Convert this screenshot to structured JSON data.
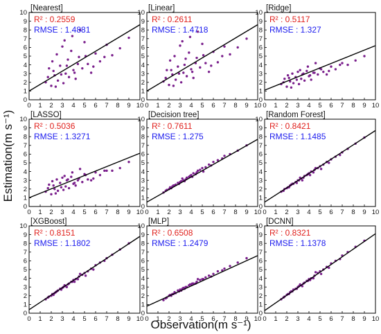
{
  "figure": {
    "xlabel": "Observation(m s⁻¹)",
    "ylabel": "Estimation(m s⁻¹)",
    "point_color": "#7a1f8c",
    "line_color": "#000000",
    "r2_color": "#e0201c",
    "rmse_color": "#1a1aee"
  },
  "chart_data": [
    {
      "type": "scatter",
      "title": "[Nearest]",
      "r2_text": "R² : 0.2559",
      "rmse_text": "RMSE : 1.4881",
      "xlim": [
        0,
        10
      ],
      "ylim": [
        0,
        10
      ],
      "xticks": [
        0,
        1,
        2,
        3,
        4,
        5,
        6,
        7,
        8,
        9,
        10
      ],
      "yticks": [
        0,
        1,
        2,
        3,
        4,
        5,
        6,
        7,
        8,
        9,
        10
      ],
      "fit_line": {
        "x": [
          0,
          10
        ],
        "y": [
          1.0,
          8.6
        ]
      },
      "x": [
        1.5,
        1.8,
        2.0,
        2.1,
        2.3,
        2.5,
        2.6,
        2.8,
        3.0,
        3.1,
        3.3,
        3.5,
        3.6,
        3.8,
        4.0,
        4.2,
        4.5,
        4.8,
        5.0,
        5.3,
        5.6,
        6.0,
        6.4,
        7.0,
        7.5,
        8.2,
        9.0,
        1.7,
        2.2,
        2.9,
        3.4,
        3.9,
        4.4,
        5.1,
        5.8,
        6.8,
        2.4,
        3.2,
        4.1,
        4.6
      ],
      "y": [
        2.0,
        3.6,
        1.6,
        4.4,
        2.8,
        5.2,
        2.2,
        3.9,
        6.1,
        1.9,
        3.0,
        4.6,
        2.6,
        5.6,
        3.4,
        2.4,
        4.9,
        3.6,
        6.6,
        4.1,
        3.1,
        5.3,
        4.4,
        6.3,
        5.1,
        5.9,
        7.1,
        2.6,
        3.3,
        2.9,
        3.9,
        7.3,
        4.1,
        5.0,
        3.8,
        4.9,
        1.5,
        6.8,
        3.1,
        8.0
      ]
    },
    {
      "type": "scatter",
      "title": "[Linear]",
      "r2_text": "R² : 0.2611",
      "rmse_text": "RMSE : 1.4718",
      "xlim": [
        0,
        10
      ],
      "ylim": [
        0,
        10
      ],
      "xticks": [
        0,
        1,
        2,
        3,
        4,
        5,
        6,
        7,
        8,
        9,
        10
      ],
      "yticks": [
        0,
        1,
        2,
        3,
        4,
        5,
        6,
        7,
        8,
        9,
        10
      ],
      "fit_line": {
        "x": [
          0,
          10
        ],
        "y": [
          1.0,
          8.6
        ]
      },
      "x": [
        1.5,
        1.8,
        2.0,
        2.1,
        2.3,
        2.5,
        2.6,
        2.8,
        3.0,
        3.1,
        3.3,
        3.5,
        3.6,
        3.8,
        4.0,
        4.2,
        4.5,
        4.8,
        5.0,
        5.3,
        5.6,
        6.0,
        6.4,
        7.0,
        7.5,
        8.2,
        9.0,
        1.7,
        2.2,
        2.9,
        3.4,
        3.9,
        4.4,
        5.1,
        5.8,
        6.8,
        2.4,
        3.2,
        4.1,
        4.6
      ],
      "y": [
        2.1,
        3.4,
        1.7,
        4.5,
        2.9,
        5.0,
        2.3,
        3.8,
        6.2,
        2.0,
        3.1,
        4.7,
        2.7,
        5.4,
        3.5,
        2.5,
        4.8,
        3.7,
        6.4,
        4.2,
        3.2,
        5.5,
        4.3,
        6.1,
        5.2,
        6.0,
        7.0,
        2.5,
        3.4,
        3.0,
        4.0,
        7.2,
        4.2,
        5.1,
        3.9,
        5.0,
        1.6,
        6.7,
        3.2,
        7.8
      ]
    },
    {
      "type": "scatter",
      "title": "[Ridge]",
      "r2_text": "R² : 0.5117",
      "rmse_text": "RMSE : 1.327",
      "xlim": [
        0,
        10
      ],
      "ylim": [
        0,
        10
      ],
      "xticks": [
        0,
        1,
        2,
        3,
        4,
        5,
        6,
        7,
        8,
        9,
        10
      ],
      "yticks": [
        0,
        1,
        2,
        3,
        4,
        5,
        6,
        7,
        8,
        9,
        10
      ],
      "fit_line": {
        "x": [
          0,
          10
        ],
        "y": [
          1.1,
          6.2
        ]
      },
      "x": [
        1.5,
        1.8,
        2.0,
        2.1,
        2.3,
        2.5,
        2.6,
        2.8,
        3.0,
        3.1,
        3.3,
        3.5,
        3.6,
        3.8,
        4.0,
        4.2,
        4.5,
        4.8,
        5.0,
        5.3,
        5.6,
        6.0,
        6.4,
        7.0,
        7.5,
        8.2,
        9.0,
        1.7,
        2.2,
        2.9,
        3.4,
        3.9,
        4.4,
        5.1,
        5.8,
        6.8,
        2.4,
        3.2,
        4.1,
        4.6
      ],
      "y": [
        1.8,
        2.4,
        1.5,
        2.8,
        2.1,
        3.0,
        1.9,
        2.6,
        3.2,
        1.8,
        2.4,
        3.0,
        2.2,
        3.3,
        2.7,
        2.3,
        3.1,
        2.9,
        3.6,
        3.2,
        2.9,
        3.8,
        3.5,
        4.2,
        4.0,
        4.5,
        5.0,
        2.0,
        2.5,
        2.3,
        2.9,
        3.8,
        3.1,
        3.5,
        3.3,
        4.0,
        1.4,
        3.4,
        2.8,
        4.2
      ]
    },
    {
      "type": "scatter",
      "title": "[LASSO]",
      "r2_text": "R² : 0.5036",
      "rmse_text": "RMSE : 1.3271",
      "xlim": [
        0,
        10
      ],
      "ylim": [
        0,
        10
      ],
      "xticks": [
        0,
        1,
        2,
        3,
        4,
        5,
        6,
        7,
        8,
        9,
        10
      ],
      "yticks": [
        0,
        1,
        2,
        3,
        4,
        5,
        6,
        7,
        8,
        9,
        10
      ],
      "fit_line": {
        "x": [
          0,
          10
        ],
        "y": [
          1.0,
          6.1
        ]
      },
      "x": [
        1.5,
        1.8,
        2.0,
        2.1,
        2.3,
        2.5,
        2.6,
        2.8,
        3.0,
        3.1,
        3.3,
        3.5,
        3.6,
        3.8,
        4.0,
        4.2,
        4.5,
        4.8,
        5.0,
        5.3,
        5.6,
        6.0,
        6.4,
        7.0,
        7.5,
        8.2,
        9.0,
        1.7,
        2.2,
        2.9,
        3.4,
        3.9,
        4.4,
        5.1,
        5.8,
        6.8,
        2.4,
        3.2,
        4.1,
        4.6
      ],
      "y": [
        1.7,
        2.5,
        1.4,
        2.9,
        2.0,
        3.1,
        1.8,
        2.7,
        3.3,
        1.9,
        2.3,
        3.1,
        2.1,
        3.4,
        2.6,
        2.4,
        3.2,
        2.8,
        3.7,
        3.1,
        3.0,
        3.9,
        3.6,
        4.1,
        4.1,
        4.4,
        5.1,
        2.1,
        2.4,
        2.2,
        3.0,
        3.9,
        3.0,
        3.6,
        3.2,
        4.1,
        1.5,
        3.5,
        2.7,
        4.3
      ]
    },
    {
      "type": "scatter",
      "title": "[Decision tree]",
      "r2_text": "R² : 0.7611",
      "rmse_text": "RMSE : 1.275",
      "xlim": [
        0,
        10
      ],
      "ylim": [
        0,
        10
      ],
      "xticks": [
        0,
        1,
        2,
        3,
        4,
        5,
        6,
        7,
        8,
        9,
        10
      ],
      "yticks": [
        0,
        1,
        2,
        3,
        4,
        5,
        6,
        7,
        8,
        9,
        10
      ],
      "fit_line": {
        "x": [
          0,
          10
        ],
        "y": [
          0.5,
          7.7
        ]
      },
      "x": [
        1.5,
        1.8,
        2.0,
        2.1,
        2.3,
        2.5,
        2.6,
        2.8,
        3.0,
        3.1,
        3.3,
        3.5,
        3.6,
        3.8,
        4.0,
        4.2,
        4.5,
        4.8,
        5.0,
        5.3,
        5.6,
        6.0,
        6.4,
        7.0,
        7.5,
        8.2,
        9.0,
        1.7,
        2.2,
        2.9,
        3.4,
        3.9,
        4.4,
        5.1,
        5.8,
        6.8,
        2.4,
        3.2,
        4.1,
        4.6
      ],
      "y": [
        1.6,
        1.9,
        2.0,
        2.2,
        2.3,
        2.4,
        2.5,
        2.7,
        2.8,
        2.9,
        3.0,
        3.1,
        3.3,
        3.4,
        3.6,
        3.8,
        3.9,
        4.2,
        4.4,
        4.5,
        4.8,
        5.1,
        5.3,
        5.8,
        6.0,
        6.4,
        7.0,
        1.8,
        2.1,
        2.6,
        2.9,
        3.5,
        3.7,
        4.0,
        4.7,
        5.5,
        2.4,
        3.2,
        3.4,
        4.1
      ]
    },
    {
      "type": "scatter",
      "title": "[Random Forest]",
      "r2_text": "R² : 0.8421",
      "rmse_text": "RMSE : 1.1485",
      "xlim": [
        0,
        10
      ],
      "ylim": [
        0,
        10
      ],
      "xticks": [
        0,
        1,
        2,
        3,
        4,
        5,
        6,
        7,
        8,
        9,
        10
      ],
      "yticks": [
        0,
        1,
        2,
        3,
        4,
        5,
        6,
        7,
        8,
        9,
        10
      ],
      "fit_line": {
        "x": [
          0,
          10
        ],
        "y": [
          0.5,
          8.7
        ]
      },
      "x": [
        1.5,
        1.8,
        2.0,
        2.1,
        2.3,
        2.5,
        2.6,
        2.8,
        3.0,
        3.1,
        3.3,
        3.5,
        3.6,
        3.8,
        4.0,
        4.2,
        4.5,
        4.8,
        5.0,
        5.3,
        5.6,
        6.0,
        6.4,
        7.0,
        7.5,
        8.2,
        9.0,
        1.7,
        2.2,
        2.9,
        3.4,
        3.9,
        4.4,
        5.1,
        5.8,
        6.8,
        2.4,
        3.2,
        4.1,
        4.6
      ],
      "y": [
        1.7,
        2.0,
        2.1,
        2.2,
        2.4,
        2.6,
        2.6,
        2.8,
        3.0,
        3.0,
        3.2,
        3.3,
        3.5,
        3.6,
        3.8,
        4.0,
        4.2,
        4.4,
        4.6,
        4.8,
        5.1,
        5.4,
        5.7,
        6.2,
        6.6,
        7.2,
        7.9,
        1.8,
        2.2,
        2.7,
        3.0,
        3.7,
        3.9,
        4.3,
        5.0,
        5.9,
        2.5,
        3.3,
        3.6,
        4.4
      ]
    },
    {
      "type": "scatter",
      "title": "[XGBoost]",
      "r2_text": "R² : 0.8151",
      "rmse_text": "RMSE : 1.1802",
      "xlim": [
        0,
        10
      ],
      "ylim": [
        0,
        10
      ],
      "xticks": [
        0,
        1,
        2,
        3,
        4,
        5,
        6,
        7,
        8,
        9,
        10
      ],
      "yticks": [
        0,
        1,
        2,
        3,
        4,
        5,
        6,
        7,
        8,
        9,
        10
      ],
      "fit_line": {
        "x": [
          0,
          10
        ],
        "y": [
          0.4,
          8.8
        ]
      },
      "x": [
        1.5,
        1.8,
        2.0,
        2.1,
        2.3,
        2.5,
        2.6,
        2.8,
        3.0,
        3.1,
        3.3,
        3.5,
        3.6,
        3.8,
        4.0,
        4.2,
        4.5,
        4.8,
        5.0,
        5.3,
        5.6,
        6.0,
        6.4,
        7.0,
        7.5,
        8.2,
        9.0,
        1.7,
        2.2,
        2.9,
        3.4,
        3.9,
        4.4,
        5.1,
        5.8,
        6.8,
        2.4,
        3.2,
        4.1,
        4.6
      ],
      "y": [
        1.6,
        1.9,
        2.0,
        2.2,
        2.3,
        2.5,
        2.6,
        2.8,
        2.9,
        3.0,
        3.1,
        3.3,
        3.4,
        3.6,
        3.8,
        3.9,
        4.2,
        4.4,
        4.6,
        4.8,
        5.1,
        5.5,
        5.8,
        6.3,
        6.7,
        7.3,
        8.0,
        1.8,
        2.1,
        2.7,
        3.0,
        3.6,
        3.9,
        4.3,
        5.0,
        6.0,
        2.4,
        3.2,
        3.6,
        4.5
      ]
    },
    {
      "type": "scatter",
      "title": "[MLP]",
      "r2_text": "R² : 0.6508",
      "rmse_text": "RMSE : 1.2479",
      "xlim": [
        0,
        10
      ],
      "ylim": [
        0,
        10
      ],
      "xticks": [
        0,
        1,
        2,
        3,
        4,
        5,
        6,
        7,
        8,
        9,
        10
      ],
      "yticks": [
        0,
        1,
        2,
        3,
        4,
        5,
        6,
        7,
        8,
        9,
        10
      ],
      "fit_line": {
        "x": [
          0,
          10
        ],
        "y": [
          0.8,
          6.6
        ]
      },
      "x": [
        1.5,
        1.8,
        2.0,
        2.1,
        2.3,
        2.5,
        2.6,
        2.8,
        3.0,
        3.1,
        3.3,
        3.5,
        3.6,
        3.8,
        4.0,
        4.2,
        4.5,
        4.8,
        5.0,
        5.3,
        5.6,
        6.0,
        6.4,
        7.0,
        7.5,
        8.2,
        9.0,
        1.7,
        2.2,
        2.9,
        3.4,
        3.9,
        4.4,
        5.1,
        5.8,
        6.8,
        2.4,
        3.2,
        4.1,
        4.6
      ],
      "y": [
        1.5,
        1.8,
        2.0,
        2.1,
        2.2,
        2.4,
        2.3,
        2.6,
        2.7,
        2.6,
        2.9,
        3.0,
        3.0,
        3.2,
        3.3,
        3.4,
        3.6,
        3.8,
        3.9,
        4.1,
        4.3,
        4.5,
        4.8,
        5.1,
        5.4,
        5.8,
        6.3,
        1.7,
        2.0,
        2.5,
        2.8,
        3.3,
        3.4,
        3.9,
        4.2,
        4.9,
        2.2,
        2.8,
        3.4,
        3.9
      ]
    },
    {
      "type": "scatter",
      "title": "[DCNN]",
      "r2_text": "R² : 0.8321",
      "rmse_text": "RMSE : 1.1378",
      "xlim": [
        0,
        10
      ],
      "ylim": [
        0,
        10
      ],
      "xticks": [
        0,
        1,
        2,
        3,
        4,
        5,
        6,
        7,
        8,
        9,
        10
      ],
      "yticks": [
        0,
        1,
        2,
        3,
        4,
        5,
        6,
        7,
        8,
        9,
        10
      ],
      "fit_line": {
        "x": [
          0,
          10
        ],
        "y": [
          0.3,
          9.1
        ]
      },
      "x": [
        1.5,
        1.8,
        2.0,
        2.1,
        2.3,
        2.5,
        2.6,
        2.8,
        3.0,
        3.1,
        3.3,
        3.5,
        3.6,
        3.8,
        4.0,
        4.2,
        4.5,
        4.8,
        5.0,
        5.3,
        5.6,
        6.0,
        6.4,
        7.0,
        7.5,
        8.2,
        9.0,
        1.7,
        2.2,
        2.9,
        3.4,
        3.9,
        4.4,
        5.1,
        5.8,
        6.8,
        2.4,
        3.2,
        4.1,
        4.6
      ],
      "y": [
        1.6,
        1.9,
        2.1,
        2.2,
        2.4,
        2.5,
        2.7,
        2.8,
        3.0,
        3.1,
        3.2,
        3.4,
        3.5,
        3.7,
        3.9,
        4.0,
        4.3,
        4.6,
        4.8,
        5.0,
        5.3,
        5.7,
        6.0,
        6.6,
        7.0,
        7.6,
        8.3,
        1.8,
        2.2,
        2.8,
        3.1,
        3.7,
        4.0,
        4.5,
        5.2,
        6.2,
        2.5,
        3.3,
        3.8,
        4.7
      ]
    }
  ]
}
